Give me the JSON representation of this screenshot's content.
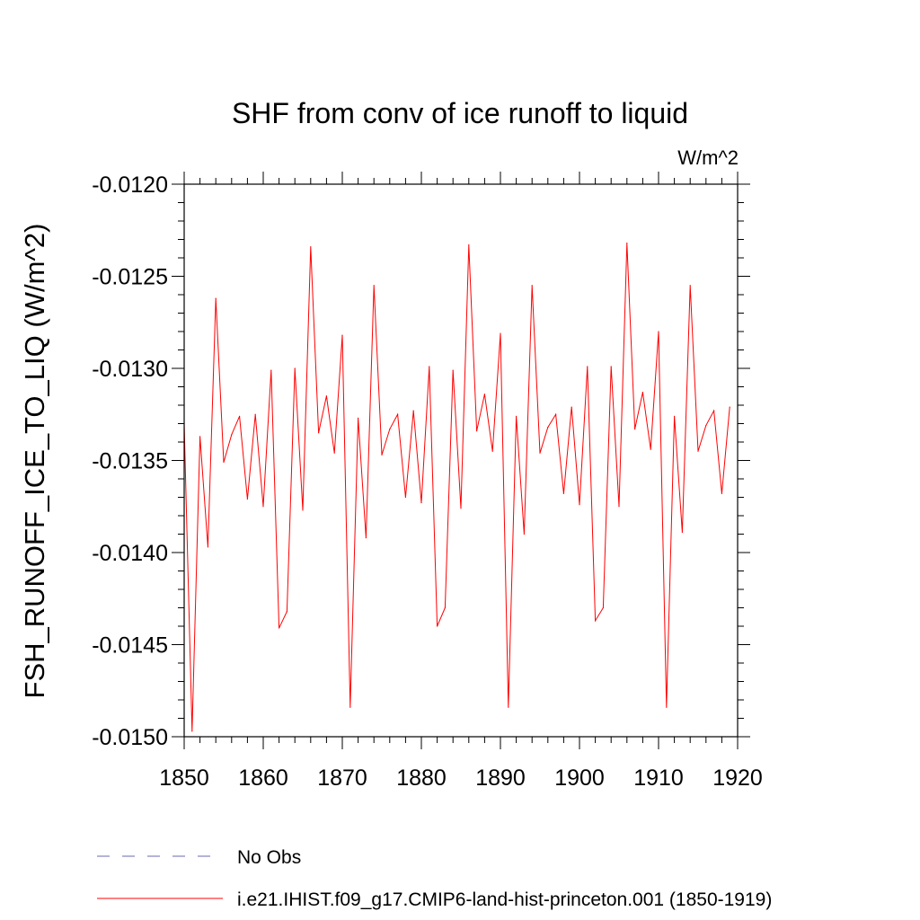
{
  "chart_data": {
    "type": "line",
    "title": "SHF from conv of ice runoff to liquid",
    "units_label": "W/m^2",
    "ylabel": "FSH_RUNOFF_ICE_TO_LIQ  (W/m^2)",
    "xlabel": "",
    "xlim": [
      1850,
      1920
    ],
    "ylim": [
      -0.015,
      -0.012
    ],
    "x_ticks": [
      1850,
      1860,
      1870,
      1880,
      1890,
      1900,
      1910,
      1920
    ],
    "x_tick_labels": [
      "1850",
      "1860",
      "1870",
      "1880",
      "1890",
      "1900",
      "1910",
      "1920"
    ],
    "y_ticks": [
      -0.012,
      -0.0125,
      -0.013,
      -0.0135,
      -0.014,
      -0.0145,
      -0.015
    ],
    "y_tick_labels": [
      "-0.0120",
      "-0.0125",
      "-0.0130",
      "-0.0135",
      "-0.0140",
      "-0.0145",
      "-0.0150"
    ],
    "grid": false,
    "legend_position": "bottom",
    "legend": [
      {
        "label": "No Obs",
        "color": "#6a6ab0",
        "dash": "dashed"
      },
      {
        "label": "i.e21.IHIST.f09_g17.CMIP6-land-hist-princeton.001 (1850-1919)",
        "color": "#ff0000",
        "dash": "solid"
      }
    ],
    "series": [
      {
        "name": "i.e21.IHIST.f09_g17.CMIP6-land-hist-princeton.001 (1850-1919)",
        "color": "#ff0000",
        "x": [
          1850,
          1851,
          1852,
          1853,
          1854,
          1855,
          1856,
          1857,
          1858,
          1859,
          1860,
          1861,
          1862,
          1863,
          1864,
          1865,
          1866,
          1867,
          1868,
          1869,
          1870,
          1871,
          1872,
          1873,
          1874,
          1875,
          1876,
          1877,
          1878,
          1879,
          1880,
          1881,
          1882,
          1883,
          1884,
          1885,
          1886,
          1887,
          1888,
          1889,
          1890,
          1891,
          1892,
          1893,
          1894,
          1895,
          1896,
          1897,
          1898,
          1899,
          1900,
          1901,
          1902,
          1903,
          1904,
          1905,
          1906,
          1907,
          1908,
          1909,
          1910,
          1911,
          1912,
          1913,
          1914,
          1915,
          1916,
          1917,
          1918,
          1919
        ],
        "y": [
          -0.0133,
          -0.01497,
          -0.01337,
          -0.01397,
          -0.01262,
          -0.01351,
          -0.01336,
          -0.01326,
          -0.01371,
          -0.01325,
          -0.01375,
          -0.01301,
          -0.01441,
          -0.01432,
          -0.013,
          -0.01377,
          -0.01234,
          -0.01335,
          -0.01315,
          -0.01346,
          -0.01282,
          -0.01484,
          -0.01327,
          -0.01392,
          -0.01255,
          -0.01347,
          -0.01333,
          -0.01325,
          -0.0137,
          -0.01323,
          -0.01373,
          -0.01299,
          -0.0144,
          -0.0143,
          -0.01301,
          -0.01376,
          -0.01233,
          -0.01334,
          -0.01314,
          -0.01345,
          -0.01281,
          -0.01484,
          -0.01326,
          -0.0139,
          -0.01255,
          -0.01346,
          -0.01332,
          -0.01325,
          -0.01368,
          -0.01321,
          -0.01374,
          -0.01299,
          -0.01437,
          -0.0143,
          -0.01299,
          -0.01375,
          -0.01232,
          -0.01333,
          -0.01313,
          -0.01344,
          -0.0128,
          -0.01484,
          -0.01326,
          -0.01389,
          -0.01255,
          -0.01345,
          -0.01331,
          -0.01323,
          -0.01368,
          -0.01321
        ]
      }
    ]
  }
}
